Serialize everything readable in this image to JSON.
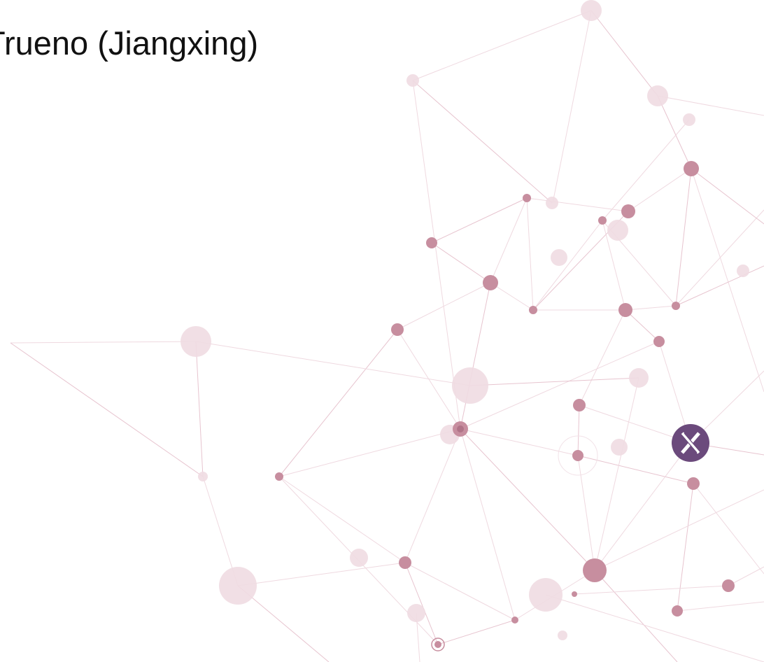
{
  "header": {
    "title": "Trueno (Jiangxing)"
  }
}
